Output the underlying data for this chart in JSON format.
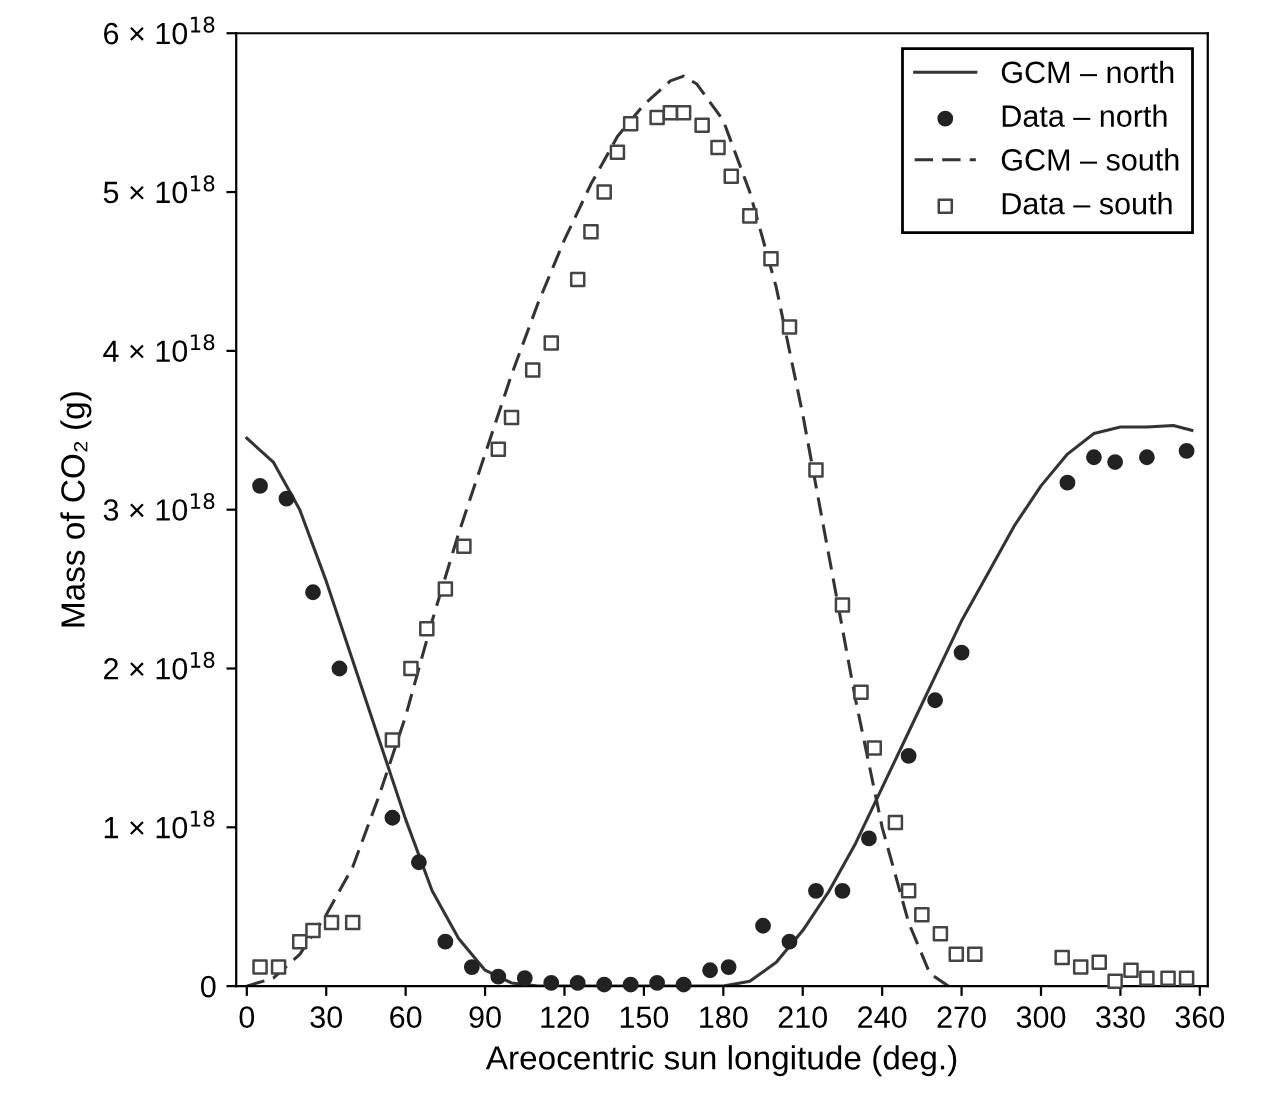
{
  "chart_data": {
    "type": "line",
    "xlabel": "Areocentric sun longitude (deg.)",
    "ylabel": "Mass of CO₂ (g)",
    "xlim": [
      -4,
      363
    ],
    "xticks": [
      0,
      30,
      60,
      90,
      120,
      150,
      180,
      210,
      240,
      270,
      300,
      330,
      360
    ],
    "ylim": [
      0,
      6e+18
    ],
    "yticks": [
      {
        "value": 0,
        "label": "0"
      },
      {
        "value": 1e+18,
        "label": "1 × 10$^{18}$"
      },
      {
        "value": 2e+18,
        "label": "2 × 10$^{18}$"
      },
      {
        "value": 3e+18,
        "label": "3 × 10$^{18}$"
      },
      {
        "value": 4e+18,
        "label": "4 × 10$^{18}$"
      },
      {
        "value": 5e+18,
        "label": "5 × 10$^{18}$"
      },
      {
        "value": 6e+18,
        "label": "6 × 10$^{18}$"
      }
    ],
    "grid": false,
    "legend": "top right",
    "series": [
      {
        "name": "GCM – north",
        "line_style": "solid",
        "marker": "none",
        "color": "#333333",
        "x": [
          0,
          10,
          20,
          30,
          40,
          50,
          60,
          70,
          80,
          90,
          100,
          110,
          180,
          190,
          200,
          210,
          220,
          230,
          240,
          250,
          260,
          270,
          280,
          290,
          300,
          310,
          320,
          330,
          340,
          350,
          357
        ],
        "values": [
          3.45e+18,
          3.3e+18,
          3e+18,
          2.55e+18,
          2.05e+18,
          1.55e+18,
          1.05e+18,
          6e+17,
          3e+17,
          1e+17,
          2e+16,
          0,
          0,
          3e+16,
          1.5e+17,
          3.5e+17,
          6e+17,
          9e+17,
          1.25e+18,
          1.6e+18,
          1.95e+18,
          2.3e+18,
          2.6e+18,
          2.9e+18,
          3.15e+18,
          3.35e+18,
          3.48e+18,
          3.52e+18,
          3.52e+18,
          3.53e+18,
          3.5e+18
        ]
      },
      {
        "name": "Data – north",
        "type": "scatter",
        "marker": "circle",
        "color": "#222222",
        "x": [
          5,
          15,
          25,
          35,
          55,
          65,
          75,
          85,
          95,
          105,
          115,
          125,
          135,
          145,
          155,
          165,
          175,
          182,
          195,
          205,
          215,
          225,
          235,
          250,
          260,
          270,
          310,
          320,
          328,
          340,
          355
        ],
        "values": [
          3.15e+18,
          3.07e+18,
          2.48e+18,
          2e+18,
          1.06e+18,
          7.8e+17,
          2.8e+17,
          1.2e+17,
          6e+16,
          5e+16,
          2e+16,
          2e+16,
          1e+16,
          1e+16,
          2e+16,
          1e+16,
          1e+17,
          1.2e+17,
          3.8e+17,
          2.8e+17,
          6e+17,
          6e+17,
          9.3e+17,
          1.45e+18,
          1.8e+18,
          2.1e+18,
          3.17e+18,
          3.33e+18,
          3.3e+18,
          3.33e+18,
          3.37e+18
        ]
      },
      {
        "name": "GCM – south",
        "line_style": "dashed",
        "marker": "none",
        "color": "#333333",
        "x": [
          0,
          10,
          20,
          30,
          40,
          50,
          60,
          70,
          80,
          90,
          100,
          110,
          120,
          130,
          140,
          150,
          160,
          165,
          170,
          180,
          190,
          200,
          210,
          220,
          230,
          240,
          250,
          258,
          265
        ],
        "values": [
          0,
          5e+16,
          2e+17,
          4.5e+17,
          7.5e+17,
          1.2e+18,
          1.7e+18,
          2.3e+18,
          2.85e+18,
          3.35e+18,
          3.85e+18,
          4.3e+18,
          4.7e+18,
          5.05e+18,
          5.35e+18,
          5.55e+18,
          5.7e+18,
          5.73e+18,
          5.68e+18,
          5.45e+18,
          5e+18,
          4.4e+18,
          3.6e+18,
          2.7e+18,
          1.8e+18,
          1e+18,
          4e+17,
          8e+16,
          0
        ]
      },
      {
        "name": "Data – south",
        "type": "scatter",
        "marker": "square",
        "color": "#444444",
        "x": [
          5,
          12,
          20,
          25,
          32,
          40,
          55,
          62,
          68,
          75,
          82,
          95,
          100,
          108,
          115,
          125,
          130,
          135,
          140,
          145,
          155,
          160,
          165,
          172,
          178,
          183,
          190,
          198,
          205,
          215,
          225,
          232,
          237,
          245,
          250,
          255,
          262,
          268,
          275,
          308,
          315,
          322,
          328,
          334,
          340,
          348,
          355
        ],
        "values": [
          1.2e+17,
          1.2e+17,
          2.8e+17,
          3.5e+17,
          4e+17,
          4e+17,
          1.55e+18,
          2e+18,
          2.25e+18,
          2.5e+18,
          2.77e+18,
          3.38e+18,
          3.58e+18,
          3.88e+18,
          4.05e+18,
          4.45e+18,
          4.75e+18,
          5e+18,
          5.25e+18,
          5.43e+18,
          5.47e+18,
          5.5e+18,
          5.5e+18,
          5.42e+18,
          5.28e+18,
          5.1e+18,
          4.85e+18,
          4.58e+18,
          4.15e+18,
          3.25e+18,
          2.4e+18,
          1.85e+18,
          1.5e+18,
          1.03e+18,
          6e+17,
          4.5e+17,
          3.3e+17,
          2e+17,
          2e+17,
          1.8e+17,
          1.2e+17,
          1.5e+17,
          3e+16,
          1e+17,
          5e+16,
          5e+16,
          5e+16
        ]
      }
    ]
  }
}
